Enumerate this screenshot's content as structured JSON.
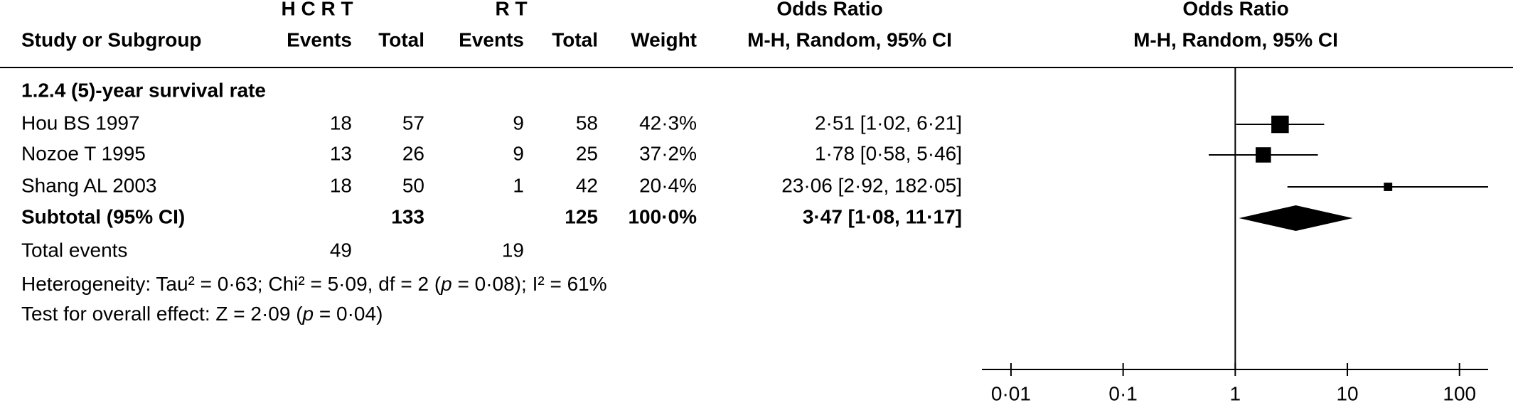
{
  "table": {
    "group_headers": [
      "H C R T",
      "R T"
    ],
    "columns": [
      "Study or Subgroup",
      "Events",
      "Total",
      "Events",
      "Total",
      "Weight"
    ],
    "or_header": [
      "Odds Ratio",
      "M-H, Random, 95% CI"
    ],
    "subgroup": "1.2.4 (5)-year survival rate",
    "rows": [
      [
        "Hou BS 1997",
        18,
        57,
        9,
        58,
        "42·3%",
        "2·51 [1·02, 6·21]"
      ],
      [
        "Nozoe T 1995",
        13,
        26,
        9,
        25,
        "37·2%",
        "1·78 [0·58, 5·46]"
      ],
      [
        "Shang AL 2003",
        18,
        50,
        1,
        42,
        "20·4%",
        "23·06 [2·92, 182·05]"
      ]
    ],
    "subtotal": {
      "label": "Subtotal (95% CI)",
      "hcrt_total": 133,
      "rt_total": 125,
      "weight": "100·0%",
      "or": "3·47 [1·08, 11·17]"
    },
    "total_events": {
      "label": "Total events",
      "hcrt": 49,
      "rt": 19
    },
    "heterogeneity": [
      "Heterogeneity: Tau² = 0·63; Chi² = 5·09, df = 2 (",
      "p",
      " = 0·08); I² = 61%"
    ],
    "overall_effect": [
      "Test for overall effect: Z = 2·09 (",
      "p",
      " = 0·04)"
    ]
  },
  "chart_data": {
    "type": "forest",
    "title": "Odds Ratio",
    "subtitle": "M-H, Random, 95% CI",
    "or": [
      2.51,
      1.78,
      23.06
    ],
    "ci_low": [
      1.02,
      0.58,
      2.92
    ],
    "ci_high": [
      6.21,
      5.46,
      182.05
    ],
    "weights": [
      42.3,
      37.2,
      20.4
    ],
    "subtotal": {
      "or": 3.47,
      "ci_low": 1.08,
      "ci_high": 11.17
    },
    "reference_line": 1,
    "xscale": "log",
    "xlim": [
      0.0055,
      180
    ],
    "xticks": [
      {
        "value": 0.01,
        "label": "0·01"
      },
      {
        "value": 0.1,
        "label": "0·1"
      },
      1,
      10,
      100
    ],
    "color": "#000000"
  }
}
